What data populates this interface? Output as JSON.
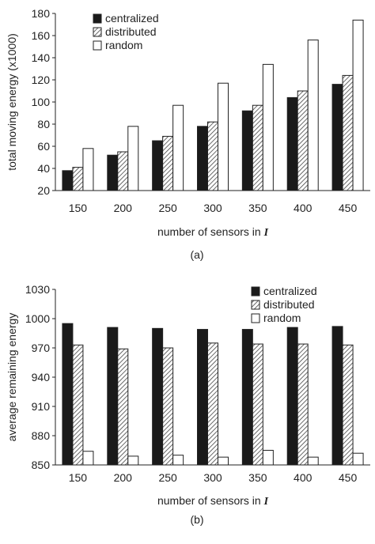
{
  "chart_data": [
    {
      "id": "a",
      "type": "bar",
      "caption": "(a)",
      "xlabel": "number of sensors in",
      "xlabel_symbol": "I",
      "ylabel": "total moving energy (x1000)",
      "categories": [
        "150",
        "200",
        "250",
        "300",
        "350",
        "400",
        "450"
      ],
      "ylim": [
        20,
        180
      ],
      "yticks": [
        20,
        40,
        60,
        80,
        100,
        120,
        140,
        160,
        180
      ],
      "legend_position": "top-left",
      "grid": false,
      "series": [
        {
          "name": "centralized",
          "pattern": "solid",
          "values": [
            38,
            52,
            65,
            78,
            92,
            104,
            116
          ]
        },
        {
          "name": "distributed",
          "pattern": "hatched",
          "values": [
            41,
            55,
            69,
            82,
            97,
            110,
            124
          ]
        },
        {
          "name": "random",
          "pattern": "outline",
          "values": [
            58,
            78,
            97,
            117,
            134,
            156,
            174
          ]
        }
      ]
    },
    {
      "id": "b",
      "type": "bar",
      "caption": "(b)",
      "xlabel": "number of sensors in",
      "xlabel_symbol": "I",
      "ylabel": "average remaining energy",
      "categories": [
        "150",
        "200",
        "250",
        "300",
        "350",
        "400",
        "450"
      ],
      "ylim": [
        850,
        1030
      ],
      "yticks": [
        850,
        880,
        910,
        940,
        970,
        1000,
        1030
      ],
      "legend_position": "top-right",
      "grid": false,
      "series": [
        {
          "name": "centralized",
          "pattern": "solid",
          "values": [
            995,
            991,
            990,
            989,
            989,
            991,
            992
          ]
        },
        {
          "name": "distributed",
          "pattern": "hatched",
          "values": [
            973,
            969,
            970,
            975,
            974,
            974,
            973
          ]
        },
        {
          "name": "random",
          "pattern": "outline",
          "values": [
            864,
            859,
            860,
            858,
            865,
            858,
            862
          ]
        }
      ]
    }
  ],
  "colors": {
    "solid": "#1a1a1a",
    "outline_fill": "#ffffff",
    "stroke": "#222222",
    "hatch": "#444444"
  }
}
